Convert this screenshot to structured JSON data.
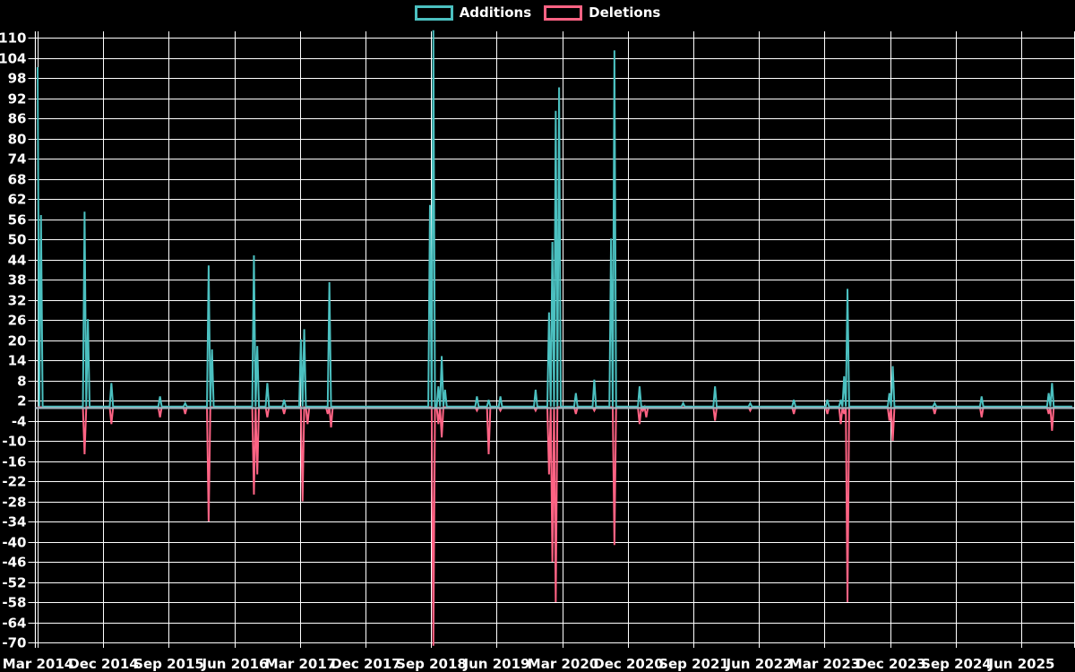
{
  "legend": [
    {
      "label": "Additions",
      "color": "#4bc0c0"
    },
    {
      "label": "Deletions",
      "color": "#ff6384"
    }
  ],
  "colors": {
    "background": "#000000",
    "grid": "#ffffff",
    "axis": "#ffffff",
    "zero_line": "#9eb0ba",
    "additions": "#4bc0c0",
    "deletions": "#ff6384",
    "tick_text": "#ffffff"
  },
  "chart_data": {
    "type": "line",
    "title": "",
    "x_axis": {
      "tick_labels": [
        "Mar 2014",
        "Dec 2014",
        "Sep 2015",
        "Jun 2016",
        "Mar 2017",
        "Dec 2017",
        "Sep 2018",
        "Jun 2019",
        "Mar 2020",
        "Dec 2020",
        "Sep 2021",
        "Jun 2022",
        "Mar 2023",
        "Dec 2023",
        "Sep 2024",
        "Jun 2025"
      ],
      "tick_interval_months": 9,
      "start": "Mar 2014",
      "weeks_total": 618
    },
    "y_axis": {
      "min": -70,
      "max": 110,
      "tick_step": 6,
      "tick_labels": [
        110,
        104,
        98,
        92,
        86,
        80,
        74,
        68,
        62,
        56,
        50,
        44,
        38,
        32,
        26,
        20,
        14,
        8,
        2,
        -4,
        -10,
        -16,
        -22,
        -28,
        -34,
        -40,
        -46,
        -52,
        -58,
        -64,
        -70
      ]
    },
    "grid": true,
    "legend_position": "top",
    "baseline_value": 0,
    "series": [
      {
        "name": "Additions",
        "color": "#4bc0c0",
        "note": "weekly values are 0 except spikes; [week_index, value]",
        "spikes": [
          [
            0,
            101
          ],
          [
            2,
            57
          ],
          [
            28,
            58
          ],
          [
            30,
            26
          ],
          [
            44,
            7
          ],
          [
            73,
            3
          ],
          [
            88,
            1
          ],
          [
            102,
            42
          ],
          [
            104,
            17
          ],
          [
            129,
            45
          ],
          [
            131,
            18
          ],
          [
            137,
            7
          ],
          [
            147,
            2
          ],
          [
            157,
            20
          ],
          [
            159,
            23
          ],
          [
            174,
            37
          ],
          [
            234,
            60
          ],
          [
            236,
            112
          ],
          [
            239,
            6
          ],
          [
            241,
            15
          ],
          [
            243,
            5
          ],
          [
            262,
            3
          ],
          [
            269,
            2
          ],
          [
            276,
            3
          ],
          [
            297,
            5
          ],
          [
            305,
            28
          ],
          [
            307,
            49
          ],
          [
            309,
            88
          ],
          [
            311,
            95
          ],
          [
            321,
            4
          ],
          [
            332,
            8
          ],
          [
            342,
            50
          ],
          [
            344,
            106
          ],
          [
            359,
            6
          ],
          [
            385,
            1
          ],
          [
            404,
            6
          ],
          [
            425,
            1
          ],
          [
            451,
            2
          ],
          [
            471,
            2
          ],
          [
            479,
            2
          ],
          [
            481,
            9
          ],
          [
            483,
            35
          ],
          [
            508,
            4
          ],
          [
            510,
            12
          ],
          [
            535,
            1
          ],
          [
            563,
            3
          ],
          [
            603,
            4
          ],
          [
            605,
            7
          ]
        ]
      },
      {
        "name": "Deletions",
        "color": "#ff6384",
        "note": "weekly values are 0 except spikes; [week_index, value]",
        "spikes": [
          [
            28,
            -14
          ],
          [
            44,
            -5
          ],
          [
            73,
            -3
          ],
          [
            88,
            -2
          ],
          [
            102,
            -34
          ],
          [
            129,
            -26
          ],
          [
            131,
            -20
          ],
          [
            137,
            -3
          ],
          [
            147,
            -2
          ],
          [
            158,
            -28
          ],
          [
            161,
            -5
          ],
          [
            173,
            -2
          ],
          [
            175,
            -6
          ],
          [
            236,
            -71
          ],
          [
            239,
            -5
          ],
          [
            241,
            -9
          ],
          [
            262,
            -1
          ],
          [
            269,
            -14
          ],
          [
            276,
            -1
          ],
          [
            297,
            -1
          ],
          [
            305,
            -20
          ],
          [
            307,
            -46
          ],
          [
            309,
            -58
          ],
          [
            321,
            -2
          ],
          [
            332,
            -1
          ],
          [
            344,
            -41
          ],
          [
            359,
            -5
          ],
          [
            361,
            -1
          ],
          [
            363,
            -3
          ],
          [
            404,
            -4
          ],
          [
            425,
            -1
          ],
          [
            451,
            -2
          ],
          [
            471,
            -2
          ],
          [
            479,
            -5
          ],
          [
            481,
            -2
          ],
          [
            483,
            -58
          ],
          [
            508,
            -4
          ],
          [
            510,
            -10
          ],
          [
            535,
            -2
          ],
          [
            563,
            -3
          ],
          [
            603,
            -2
          ],
          [
            605,
            -7
          ]
        ]
      }
    ]
  }
}
